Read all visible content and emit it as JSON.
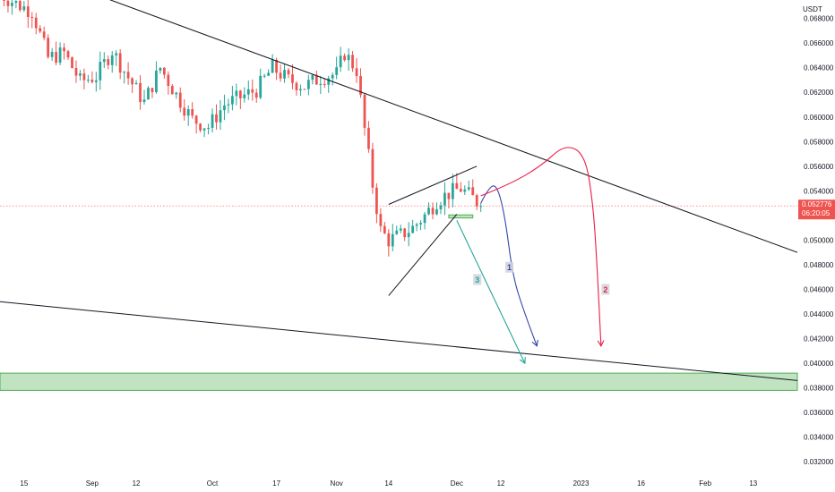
{
  "chart_data": {
    "type": "candlestick",
    "currency": "USDT",
    "price_label": "0.052776",
    "countdown_label": "06:20:05",
    "last_price": 0.052776,
    "ylim": [
      0.031,
      0.0695
    ],
    "y_ticks": [
      "0.068000",
      "0.066000",
      "0.064000",
      "0.062000",
      "0.060000",
      "0.058000",
      "0.056000",
      "0.054000",
      "0.052000",
      "0.050000",
      "0.048000",
      "0.046000",
      "0.044000",
      "0.042000",
      "0.040000",
      "0.038000",
      "0.036000",
      "0.034000",
      "0.032000"
    ],
    "x_ticks": [
      {
        "label": "15",
        "date": "2022-08-15"
      },
      {
        "label": "Sep",
        "date": "2022-09-01"
      },
      {
        "label": "12",
        "date": "2022-09-12"
      },
      {
        "label": "Oct",
        "date": "2022-10-01"
      },
      {
        "label": "17",
        "date": "2022-10-17"
      },
      {
        "label": "Nov",
        "date": "2022-11-01"
      },
      {
        "label": "14",
        "date": "2022-11-14"
      },
      {
        "label": "Dec",
        "date": "2022-12-01"
      },
      {
        "label": "12",
        "date": "2022-12-12"
      },
      {
        "label": "2023",
        "date": "2023-01-01"
      },
      {
        "label": "16",
        "date": "2023-01-16"
      },
      {
        "label": "Feb",
        "date": "2023-02-01"
      },
      {
        "label": "13",
        "date": "2023-02-13"
      }
    ],
    "x_range": [
      "2022-08-09",
      "2023-02-24"
    ],
    "candles_range": [
      "2022-08-09",
      "2022-12-07"
    ],
    "close_path": [
      {
        "date": "2022-08-09",
        "price": 0.07
      },
      {
        "date": "2022-08-13",
        "price": 0.0692
      },
      {
        "date": "2022-08-17",
        "price": 0.0686
      },
      {
        "date": "2022-08-21",
        "price": 0.0648
      },
      {
        "date": "2022-08-25",
        "price": 0.0652
      },
      {
        "date": "2022-08-29",
        "price": 0.0629
      },
      {
        "date": "2022-09-02",
        "price": 0.0633
      },
      {
        "date": "2022-09-06",
        "price": 0.0654
      },
      {
        "date": "2022-09-10",
        "price": 0.0632
      },
      {
        "date": "2022-09-14",
        "price": 0.0612
      },
      {
        "date": "2022-09-18",
        "price": 0.064
      },
      {
        "date": "2022-09-22",
        "price": 0.0618
      },
      {
        "date": "2022-09-26",
        "price": 0.0598
      },
      {
        "date": "2022-09-30",
        "price": 0.0592
      },
      {
        "date": "2022-10-04",
        "price": 0.061
      },
      {
        "date": "2022-10-08",
        "price": 0.0616
      },
      {
        "date": "2022-10-12",
        "price": 0.0622
      },
      {
        "date": "2022-10-16",
        "price": 0.064
      },
      {
        "date": "2022-10-20",
        "price": 0.063
      },
      {
        "date": "2022-10-24",
        "price": 0.0625
      },
      {
        "date": "2022-10-28",
        "price": 0.0632
      },
      {
        "date": "2022-11-01",
        "price": 0.0635
      },
      {
        "date": "2022-11-03",
        "price": 0.0652
      },
      {
        "date": "2022-11-06",
        "price": 0.0638
      },
      {
        "date": "2022-11-08",
        "price": 0.059
      },
      {
        "date": "2022-11-10",
        "price": 0.0545
      },
      {
        "date": "2022-11-12",
        "price": 0.0508
      },
      {
        "date": "2022-11-14",
        "price": 0.05
      },
      {
        "date": "2022-11-17",
        "price": 0.0504
      },
      {
        "date": "2022-11-20",
        "price": 0.051
      },
      {
        "date": "2022-11-23",
        "price": 0.052
      },
      {
        "date": "2022-11-26",
        "price": 0.0532
      },
      {
        "date": "2022-11-29",
        "price": 0.0538
      },
      {
        "date": "2022-12-02",
        "price": 0.0542
      },
      {
        "date": "2022-12-05",
        "price": 0.0534
      },
      {
        "date": "2022-12-07",
        "price": 0.05278
      }
    ],
    "trendlines": [
      {
        "name": "upper-trendline",
        "color": "#131722",
        "points": [
          {
            "date": "2022-08-09",
            "price": 0.0728
          },
          {
            "date": "2023-02-24",
            "price": 0.049
          }
        ]
      },
      {
        "name": "lower-trendline",
        "color": "#131722",
        "points": [
          {
            "date": "2022-08-09",
            "price": 0.045
          },
          {
            "date": "2023-02-24",
            "price": 0.0386
          }
        ]
      },
      {
        "name": "wedge-upper",
        "color": "#131722",
        "points": [
          {
            "date": "2022-11-14",
            "price": 0.0529
          },
          {
            "date": "2022-12-06",
            "price": 0.056
          }
        ]
      },
      {
        "name": "wedge-lower",
        "color": "#131722",
        "points": [
          {
            "date": "2022-11-14",
            "price": 0.0455
          },
          {
            "date": "2022-12-01",
            "price": 0.0521
          }
        ]
      }
    ],
    "support_zone": {
      "from": 0.0378,
      "to": 0.0392,
      "color": "#4caf50"
    },
    "small_zone": {
      "start": "2022-11-29",
      "end": "2022-12-05",
      "from": 0.0518,
      "to": 0.05205
    },
    "scenarios": [
      {
        "label": "1",
        "color": "#3347a8",
        "points": [
          {
            "date": "2022-12-07",
            "price": 0.053
          },
          {
            "date": "2022-12-09",
            "price": 0.0543
          },
          {
            "date": "2022-12-11",
            "price": 0.0545
          },
          {
            "date": "2022-12-13",
            "price": 0.052
          },
          {
            "date": "2022-12-15",
            "price": 0.047
          },
          {
            "date": "2022-12-18",
            "price": 0.044
          },
          {
            "date": "2022-12-21",
            "price": 0.0414
          }
        ],
        "label_at": {
          "date": "2022-12-14",
          "price": 0.0478
        }
      },
      {
        "label": "2",
        "color": "#e91e4a",
        "points": [
          {
            "date": "2022-12-07",
            "price": 0.0536
          },
          {
            "date": "2022-12-14",
            "price": 0.0545
          },
          {
            "date": "2022-12-22",
            "price": 0.056
          },
          {
            "date": "2022-12-28",
            "price": 0.0578
          },
          {
            "date": "2023-01-02",
            "price": 0.057
          },
          {
            "date": "2023-01-04",
            "price": 0.053
          },
          {
            "date": "2023-01-05",
            "price": 0.048
          },
          {
            "date": "2023-01-06",
            "price": 0.0414
          }
        ],
        "label_at": {
          "date": "2023-01-07",
          "price": 0.046
        }
      },
      {
        "label": "3",
        "color": "#26a69a",
        "points": [
          {
            "date": "2022-12-01",
            "price": 0.0516
          },
          {
            "date": "2022-12-18",
            "price": 0.04
          }
        ],
        "label_at": {
          "date": "2022-12-06",
          "price": 0.0468
        }
      }
    ],
    "colors": {
      "up": "#26a69a",
      "down": "#ef5350",
      "price_line": "#ef5350"
    }
  }
}
